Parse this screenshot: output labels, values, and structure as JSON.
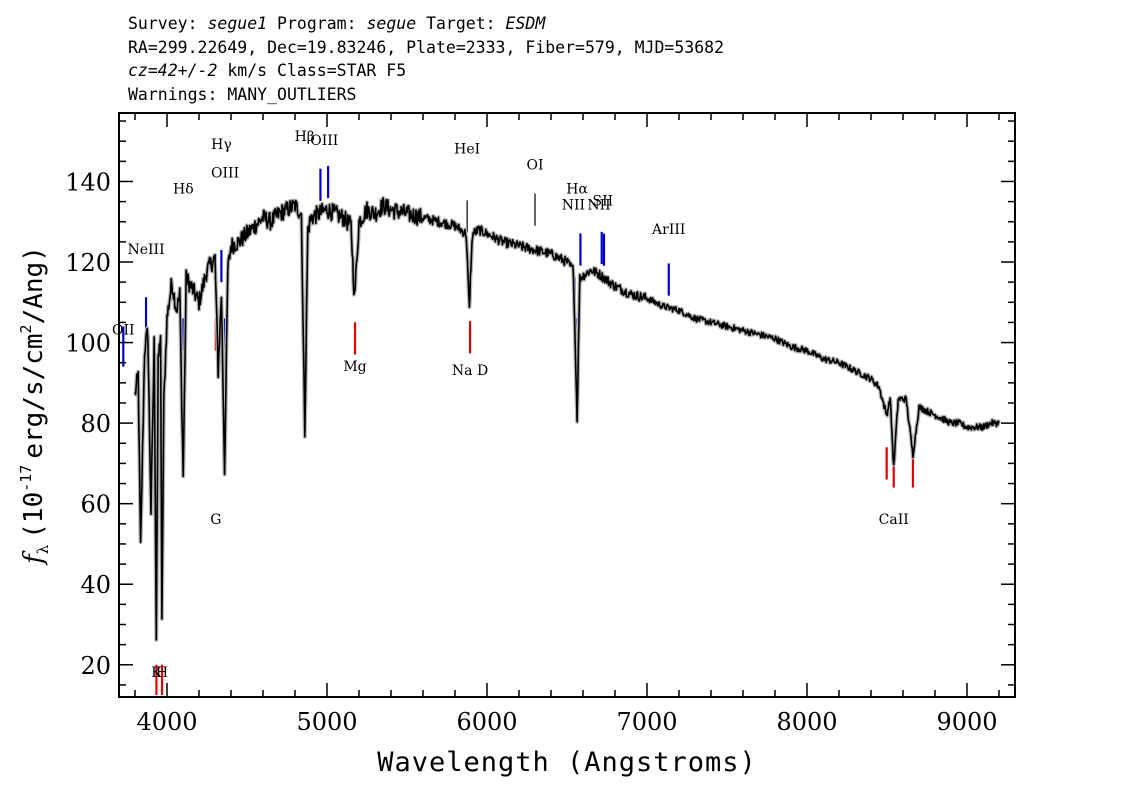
{
  "header": {
    "survey_label": "Survey:",
    "survey": "segue1",
    "program_label": "Program:",
    "program": "segue",
    "target_label": "Target:",
    "target": "ESDM",
    "line2": "RA=299.22649, Dec=19.83246, Plate=2333, Fiber=579, MJD=53682",
    "cz": "cz=42+/-2",
    "cz_units": "km/s",
    "class_text": "Class=STAR F5",
    "warnings": "Warnings: MANY_OUTLIERS"
  },
  "chart_data": {
    "type": "line",
    "xlabel": "Wavelength (Angstroms)",
    "ylabel_f": "f",
    "ylabel_sub": "λ",
    "ylabel_open": "(10",
    "ylabel_exp1": "-17",
    "ylabel_mid": "erg/s/cm",
    "ylabel_exp2": "2",
    "ylabel_close": "/Ang)",
    "xlim": [
      3700,
      9300
    ],
    "ylim": [
      12,
      157
    ],
    "x_ticks": [
      4000,
      5000,
      6000,
      7000,
      8000,
      9000
    ],
    "y_ticks": [
      20,
      40,
      60,
      80,
      100,
      120,
      140
    ],
    "grid": false,
    "colors": {
      "spectrum": "#000000",
      "error_band": "#b4b4b4",
      "emission_lines": "#0000cc",
      "absorption_lines": "#e00000",
      "sky_lines": "#000000"
    },
    "spectrum": {
      "x": [
        3800,
        3820,
        3835,
        3860,
        3880,
        3900,
        3920,
        3933,
        3945,
        3960,
        3968,
        3980,
        4000,
        4030,
        4060,
        4080,
        4101,
        4120,
        4150,
        4200,
        4250,
        4300,
        4320,
        4340,
        4360,
        4380,
        4400,
        4450,
        4500,
        4550,
        4600,
        4650,
        4700,
        4750,
        4800,
        4840,
        4861,
        4880,
        4900,
        4950,
        5000,
        5050,
        5100,
        5150,
        5172,
        5200,
        5250,
        5300,
        5350,
        5400,
        5500,
        5600,
        5700,
        5800,
        5870,
        5890,
        5896,
        5910,
        5950,
        6000,
        6100,
        6200,
        6300,
        6400,
        6500,
        6540,
        6563,
        6580,
        6650,
        6700,
        6800,
        6900,
        7000,
        7100,
        7200,
        7300,
        7400,
        7500,
        7600,
        7700,
        7800,
        7900,
        8000,
        8100,
        8200,
        8300,
        8400,
        8450,
        8498,
        8520,
        8542,
        8570,
        8620,
        8662,
        8700,
        8750,
        8800,
        8850,
        8900,
        8950,
        9000,
        9050,
        9100,
        9150,
        9200
      ],
      "y": [
        87,
        92,
        49,
        98,
        103,
        58,
        100,
        27,
        95,
        102,
        30,
        85,
        106,
        115,
        108,
        112,
        67,
        116,
        114,
        110,
        118,
        121,
        93,
        112,
        68,
        118,
        124,
        125,
        127,
        129,
        131,
        130,
        132,
        133,
        134,
        132,
        78,
        128,
        131,
        132,
        133,
        132,
        131,
        129,
        111,
        130,
        133,
        132,
        134,
        133,
        132,
        131,
        130,
        129,
        127,
        108,
        116,
        127,
        128,
        127,
        125,
        124,
        123,
        122,
        120,
        118,
        81,
        116,
        118,
        117,
        114,
        112,
        111,
        109,
        108,
        106,
        105,
        104,
        103,
        102,
        101,
        99,
        98,
        96,
        95,
        93,
        91,
        89,
        82,
        86,
        69,
        86,
        86,
        72,
        84,
        83,
        82,
        81,
        80,
        80,
        79,
        79,
        79,
        80,
        80
      ]
    },
    "line_markers": [
      {
        "label": "OII",
        "x": 3727,
        "type": "emission"
      },
      {
        "label": "NeIII",
        "x": 3869,
        "type": "emission"
      },
      {
        "label": "Hδ",
        "x": 4102,
        "type": "emission"
      },
      {
        "label": "Hγ",
        "x": 4340,
        "type": "emission"
      },
      {
        "label": "OIII",
        "x": 4363,
        "type": "emission"
      },
      {
        "label": "Hβ",
        "x": 4861,
        "type": "emission"
      },
      {
        "label": "OIII",
        "x": 4959,
        "type": "emission"
      },
      {
        "label": "OIII",
        "x": 5007,
        "type": "emission"
      },
      {
        "label": "HeI",
        "x": 5876,
        "type": "sky"
      },
      {
        "label": "OI",
        "x": 6300,
        "type": "sky"
      },
      {
        "label": "NII",
        "x": 6548,
        "type": "emission"
      },
      {
        "label": "Hα",
        "x": 6563,
        "type": "emission"
      },
      {
        "label": "NII",
        "x": 6584,
        "type": "emission"
      },
      {
        "label": "SII",
        "x": 6717,
        "type": "emission"
      },
      {
        "label": "SII",
        "x": 6731,
        "type": "emission"
      },
      {
        "label": "ArIII",
        "x": 7136,
        "type": "emission"
      },
      {
        "label": "K",
        "x": 3934,
        "type": "absorption"
      },
      {
        "label": "H",
        "x": 3969,
        "type": "absorption"
      },
      {
        "label": "G",
        "x": 4305,
        "type": "absorption"
      },
      {
        "label": "Mg",
        "x": 5175,
        "type": "absorption"
      },
      {
        "label": "Na D",
        "x": 5894,
        "type": "absorption"
      },
      {
        "label": "CaII",
        "x": 8498,
        "type": "absorption"
      },
      {
        "label": "CaII",
        "x": 8542,
        "type": "absorption"
      },
      {
        "label": "CaII",
        "x": 8662,
        "type": "absorption"
      }
    ],
    "marker_labels": [
      {
        "text": "OII",
        "x": 3727,
        "y": 102
      },
      {
        "text": "NeIII",
        "x": 3869,
        "y": 122
      },
      {
        "text": "Hδ",
        "x": 4102,
        "y": 137
      },
      {
        "text": "Hγ",
        "x": 4340,
        "y": 148
      },
      {
        "text": "OIII",
        "x": 4363,
        "y": 141
      },
      {
        "text": "Hβ",
        "x": 4861,
        "y": 150
      },
      {
        "text": "OIII",
        "x": 4983,
        "y": 149
      },
      {
        "text": "HeI",
        "x": 5876,
        "y": 147
      },
      {
        "text": "OI",
        "x": 6300,
        "y": 143
      },
      {
        "text": "NII",
        "x": 6540,
        "y": 133
      },
      {
        "text": "Hα",
        "x": 6563,
        "y": 137
      },
      {
        "text": "NII",
        "x": 6700,
        "y": 133
      },
      {
        "text": "SII",
        "x": 6724,
        "y": 134
      },
      {
        "text": "ArIII",
        "x": 7136,
        "y": 127
      },
      {
        "text": "K",
        "x": 3934,
        "y": 17
      },
      {
        "text": "H",
        "x": 3969,
        "y": 17
      },
      {
        "text": "G",
        "x": 4305,
        "y": 55
      },
      {
        "text": "Mg",
        "x": 5175,
        "y": 93
      },
      {
        "text": "Na D",
        "x": 5894,
        "y": 92
      },
      {
        "text": "CaII",
        "x": 8542,
        "y": 55
      }
    ]
  }
}
